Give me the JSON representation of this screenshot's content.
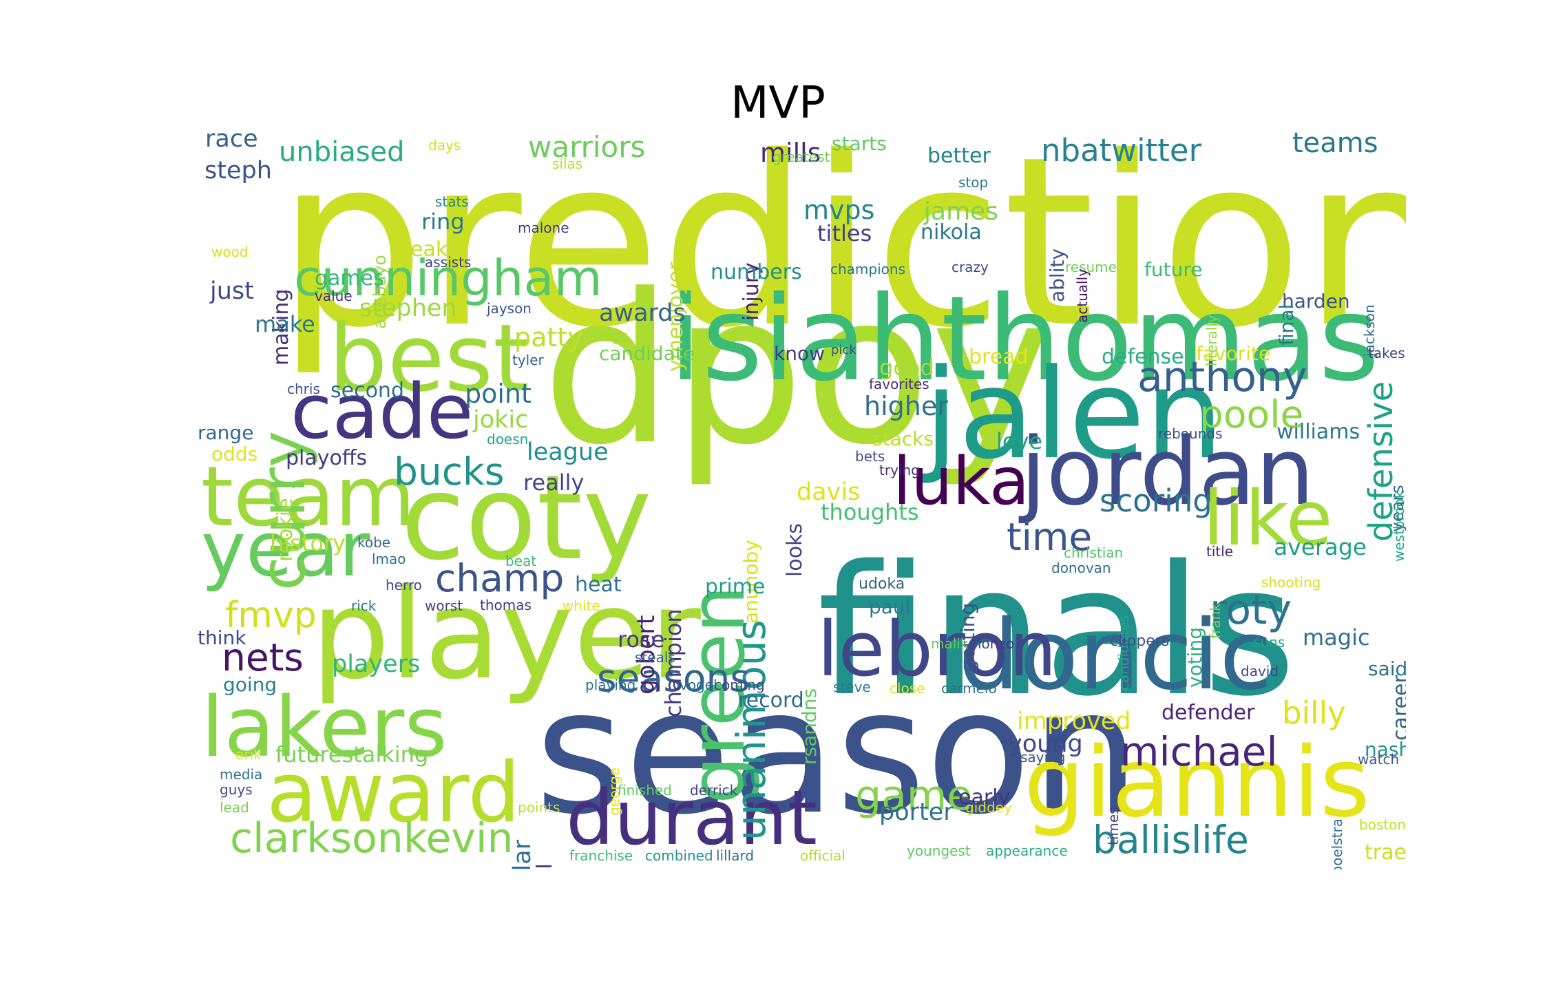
{
  "figure": {
    "title": "MVP"
  },
  "colors": {
    "background": "#ffffff",
    "palette": "viridis",
    "title_color": "#000000"
  },
  "words": [
    {
      "text": "predictions",
      "color": "#c8df23"
    },
    {
      "text": "dpoy",
      "color": "#addc30"
    },
    {
      "text": "season",
      "color": "#3b528b"
    },
    {
      "text": "finals",
      "color": "#21918c"
    },
    {
      "text": "isiahthomas",
      "color": "#3bbb75"
    },
    {
      "text": "player",
      "color": "#a8db34"
    },
    {
      "text": "jalen",
      "color": "#1e9c89"
    },
    {
      "text": "coty",
      "color": "#a2da37"
    },
    {
      "text": "doncic",
      "color": "#31688e"
    },
    {
      "text": "jordan",
      "color": "#3e4c8a"
    },
    {
      "text": "best",
      "color": "#9fda3a"
    },
    {
      "text": "giannis",
      "color": "#e5e419"
    },
    {
      "text": "lakers",
      "color": "#86d549"
    },
    {
      "text": "team",
      "color": "#9dd93b"
    },
    {
      "text": "award",
      "color": "#b5de2b"
    },
    {
      "text": "lebron",
      "color": "#3f4788"
    },
    {
      "text": "green",
      "color": "#4ac16d"
    },
    {
      "text": "cade",
      "color": "#453581"
    },
    {
      "text": "luka",
      "color": "#440154"
    },
    {
      "text": "year",
      "color": "#65cb5e"
    },
    {
      "text": "like",
      "color": "#a5db36"
    },
    {
      "text": "durant",
      "color": "#46307e"
    },
    {
      "text": "curry",
      "color": "#7ad151"
    },
    {
      "text": "cunningham",
      "color": "#58c765"
    },
    {
      "text": "clarksonkevin",
      "color": "#81d34d"
    },
    {
      "text": "unanimous",
      "color": "#1f958b"
    },
    {
      "text": "michael",
      "color": "#482576"
    },
    {
      "text": "anthony",
      "color": "#35608d"
    },
    {
      "text": "roty",
      "color": "#2c728e"
    },
    {
      "text": "game",
      "color": "#84d44b"
    },
    {
      "text": "ballislife",
      "color": "#25838e"
    },
    {
      "text": "champ",
      "color": "#3b528b"
    },
    {
      "text": "nets",
      "color": "#471365"
    },
    {
      "text": "seasons",
      "color": "#33638d"
    },
    {
      "text": "bucks",
      "color": "#20928c"
    },
    {
      "text": "poole",
      "color": "#8bd646"
    },
    {
      "text": "defensive",
      "color": "#1fa187"
    },
    {
      "text": "time",
      "color": "#3a548c"
    },
    {
      "text": "scoring",
      "color": "#2c718e"
    },
    {
      "text": "fmvp",
      "color": "#d0e11c"
    },
    {
      "text": "billy",
      "color": "#dde318"
    },
    {
      "text": "nbatwitter",
      "color": "#26828e"
    },
    {
      "text": "warriors",
      "color": "#6ccd5a"
    },
    {
      "text": "unbiased",
      "color": "#27ad81"
    },
    {
      "text": "mills",
      "color": "#482878"
    },
    {
      "text": "teams",
      "color": "#2a788e"
    },
    {
      "text": "steph",
      "color": "#3b528b"
    },
    {
      "text": "race",
      "color": "#33638d"
    },
    {
      "text": "mvps",
      "color": "#25848e"
    },
    {
      "text": "james",
      "color": "#7fd34e"
    },
    {
      "text": "nikola",
      "color": "#2a768e"
    },
    {
      "text": "titles",
      "color": "#433e85"
    },
    {
      "text": "injury",
      "color": "#482173"
    },
    {
      "text": "ymenjoyer",
      "color": "#c2df23"
    },
    {
      "text": "adebayo",
      "color": "#a0da39"
    },
    {
      "text": "making",
      "color": "#472c7a"
    },
    {
      "text": "ring",
      "color": "#2a788e"
    },
    {
      "text": "peak",
      "color": "#c5e021"
    },
    {
      "text": "games",
      "color": "#35b779"
    },
    {
      "text": "just",
      "color": "#3e4989"
    },
    {
      "text": "stephen",
      "color": "#9bd93c"
    },
    {
      "text": "make",
      "color": "#2a768e"
    },
    {
      "text": "rookie",
      "color": "#a8db34"
    },
    {
      "text": "patty",
      "color": "#bddf26"
    },
    {
      "text": "awards",
      "color": "#34618d"
    },
    {
      "text": "point",
      "color": "#2d708e"
    },
    {
      "text": "jokic",
      "color": "#95d840"
    },
    {
      "text": "second",
      "color": "#2e6e8e"
    },
    {
      "text": "range",
      "color": "#31668e"
    },
    {
      "text": "odds",
      "color": "#e2e418"
    },
    {
      "text": "playoffs",
      "color": "#443a83"
    },
    {
      "text": "league",
      "color": "#228c8d"
    },
    {
      "text": "really",
      "color": "#3f4788"
    },
    {
      "text": "champion",
      "color": "#453882"
    },
    {
      "text": "anunoby",
      "color": "#d8e219"
    },
    {
      "text": "looks",
      "color": "#414487"
    },
    {
      "text": "davis",
      "color": "#dde318"
    },
    {
      "text": "thoughts",
      "color": "#44bf70"
    },
    {
      "text": "history",
      "color": "#b8de29"
    },
    {
      "text": "gobert",
      "color": "#482071"
    },
    {
      "text": "heat",
      "color": "#2b748e"
    },
    {
      "text": "prime",
      "color": "#1f9e89"
    },
    {
      "text": "think",
      "color": "#3e4c8a"
    },
    {
      "text": "rose",
      "color": "#443983"
    },
    {
      "text": "magic",
      "color": "#2e6f8e"
    },
    {
      "text": "players",
      "color": "#2fb47c"
    },
    {
      "text": "going",
      "color": "#287d8e"
    },
    {
      "text": "futurestalking",
      "color": "#7ad151"
    },
    {
      "text": "regular",
      "color": "#2d718e"
    },
    {
      "text": "basketball",
      "color": "#482576"
    },
    {
      "text": "record",
      "color": "#31688e"
    },
    {
      "text": "improved",
      "color": "#e5e419"
    },
    {
      "text": "defender",
      "color": "#482575"
    },
    {
      "text": "young",
      "color": "#3e4989"
    },
    {
      "text": "early",
      "color": "#453581"
    },
    {
      "text": "porter",
      "color": "#2c728e"
    },
    {
      "text": "winning",
      "color": "#2a788e"
    },
    {
      "text": "nash",
      "color": "#20938c"
    },
    {
      "text": "said",
      "color": "#2c718e"
    },
    {
      "text": "trae",
      "color": "#c8e020"
    },
    {
      "text": "career",
      "color": "#33638d"
    },
    {
      "text": "average",
      "color": "#1fa088"
    },
    {
      "text": "voting",
      "color": "#2db27d"
    },
    {
      "text": "years",
      "color": "#32658e"
    },
    {
      "text": "williams",
      "color": "#2a788e"
    },
    {
      "text": "love",
      "color": "#1fa187"
    },
    {
      "text": "getting",
      "color": "#3a538b"
    },
    {
      "text": "stacks",
      "color": "#b8de29"
    },
    {
      "text": "good",
      "color": "#a5db36"
    },
    {
      "text": "higher",
      "color": "#2e6e8e"
    },
    {
      "text": "bread",
      "color": "#e2e418"
    },
    {
      "text": "defense",
      "color": "#26ad81"
    },
    {
      "text": "favorite",
      "color": "#d8e219"
    },
    {
      "text": "harden",
      "color": "#3b528b"
    },
    {
      "text": "future",
      "color": "#3bbb75"
    },
    {
      "text": "final",
      "color": "#2a788e"
    },
    {
      "text": "ablity",
      "color": "#3b528b"
    },
    {
      "text": "better",
      "color": "#25848e"
    },
    {
      "text": "starts",
      "color": "#5ec962"
    },
    {
      "text": "know",
      "color": "#443983"
    },
    {
      "text": "numbers",
      "color": "#218f8d"
    },
    {
      "text": "candidate",
      "color": "#6ece58"
    },
    {
      "text": "rsandns",
      "color": "#5ec962"
    },
    {
      "text": "paul",
      "color": "#2a788e"
    },
    {
      "text": "udoka",
      "color": "#33638d"
    },
    {
      "text": "rings",
      "color": "#a2da37"
    },
    {
      "text": "pick",
      "color": "#3e4c8a"
    },
    {
      "text": "chris",
      "color": "#3b528b"
    },
    {
      "text": "doesn",
      "color": "#22a785"
    },
    {
      "text": "silas",
      "color": "#b5de2b"
    },
    {
      "text": "days",
      "color": "#d5e21a"
    },
    {
      "text": "stats",
      "color": "#25848e"
    },
    {
      "text": "malone",
      "color": "#453882"
    },
    {
      "text": "assists",
      "color": "#424086"
    },
    {
      "text": "value",
      "color": "#472d7b"
    },
    {
      "text": "jayson",
      "color": "#3a548c"
    },
    {
      "text": "tyler",
      "color": "#33638d"
    },
    {
      "text": "wood",
      "color": "#d5e21a"
    },
    {
      "text": "greatest",
      "color": "#6ece58"
    },
    {
      "text": "stop",
      "color": "#2a788e"
    },
    {
      "text": "crazy",
      "color": "#3e4989"
    },
    {
      "text": "champions",
      "color": "#2a768e"
    },
    {
      "text": "resume",
      "color": "#70cf57"
    },
    {
      "text": "actually",
      "color": "#471365"
    },
    {
      "text": "literally",
      "color": "#8bd646"
    },
    {
      "text": "jackson",
      "color": "#2e6e8e"
    },
    {
      "text": "favorites",
      "color": "#46307e"
    },
    {
      "text": "bets",
      "color": "#3e4c8a"
    },
    {
      "text": "trying",
      "color": "#472c7a"
    },
    {
      "text": "rebounds",
      "color": "#3b528b"
    },
    {
      "text": "westbrook",
      "color": "#22a785"
    },
    {
      "text": "takes",
      "color": "#3e4989"
    },
    {
      "text": "kobe",
      "color": "#31688e"
    },
    {
      "text": "lmao",
      "color": "#2c728e"
    },
    {
      "text": "beat",
      "color": "#3bbb75"
    },
    {
      "text": "herro",
      "color": "#3e4989"
    },
    {
      "text": "rick",
      "color": "#2a788e"
    },
    {
      "text": "worst",
      "color": "#414487"
    },
    {
      "text": "thomas",
      "color": "#453581"
    },
    {
      "text": "white",
      "color": "#e2e418"
    },
    {
      "text": "christian",
      "color": "#50c46a"
    },
    {
      "text": "donovan",
      "color": "#2e6e8e"
    },
    {
      "text": "candidates",
      "color": "#22a785"
    },
    {
      "text": "title",
      "color": "#482475"
    },
    {
      "text": "frank",
      "color": "#7ad151"
    },
    {
      "text": "shooting",
      "color": "#d0e11c"
    },
    {
      "text": "malik",
      "color": "#65cb5e"
    },
    {
      "text": "lonzo",
      "color": "#443a83"
    },
    {
      "text": "clippers",
      "color": "#3b528b"
    },
    {
      "text": "suns",
      "color": "#20a486"
    },
    {
      "text": "david",
      "color": "#3e4989"
    },
    {
      "text": "steals",
      "color": "#32658e"
    },
    {
      "text": "playing",
      "color": "#2c728e"
    },
    {
      "text": "vogel",
      "color": "#2c718e"
    },
    {
      "text": "coming",
      "color": "#3e4989"
    },
    {
      "text": "steve",
      "color": "#2a788e"
    },
    {
      "text": "close",
      "color": "#dde318"
    },
    {
      "text": "carmelo",
      "color": "#2e6e8e"
    },
    {
      "text": "erik",
      "color": "#e2e418"
    },
    {
      "text": "george",
      "color": "#e5e419"
    },
    {
      "text": "media",
      "color": "#2d708e"
    },
    {
      "text": "guys",
      "color": "#3e4989"
    },
    {
      "text": "lead",
      "color": "#7ad151"
    },
    {
      "text": "points",
      "color": "#b8de29"
    },
    {
      "text": "finished",
      "color": "#5ec962"
    },
    {
      "text": "derrick",
      "color": "#414487"
    },
    {
      "text": "saying",
      "color": "#3b528b"
    },
    {
      "text": "times",
      "color": "#433e85"
    },
    {
      "text": "spoelstra",
      "color": "#2c728e"
    },
    {
      "text": "watch",
      "color": "#39568c"
    },
    {
      "text": "giddey",
      "color": "#dde318"
    },
    {
      "text": "boston",
      "color": "#c2df23"
    },
    {
      "text": "franchise",
      "color": "#3bbb75"
    },
    {
      "text": "combined",
      "color": "#21918c"
    },
    {
      "text": "lillard",
      "color": "#2e6e8e"
    },
    {
      "text": "official",
      "color": "#b2dd2d"
    },
    {
      "text": "youngest",
      "color": "#5ec962"
    },
    {
      "text": "appearance",
      "color": "#27ad81"
    }
  ]
}
